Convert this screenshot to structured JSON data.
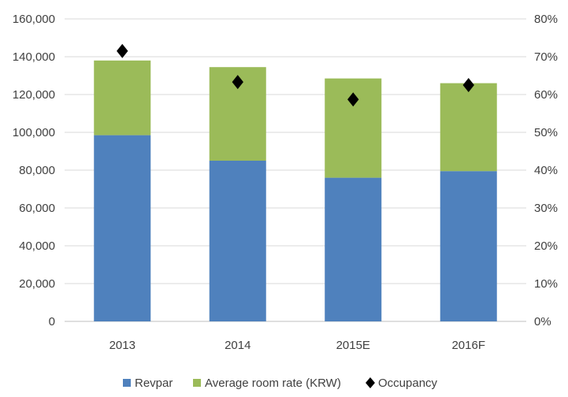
{
  "chart_data": {
    "type": "bar",
    "stacked": true,
    "categories": [
      "2013",
      "2014",
      "2015E",
      "2016F"
    ],
    "series": [
      {
        "name": "Revpar",
        "values": [
          98500,
          85000,
          76000,
          79500
        ],
        "axis": "left",
        "color": "#4f81bd"
      },
      {
        "name": "Average room rate (KRW)",
        "values": [
          39500,
          49500,
          52500,
          46500
        ],
        "axis": "left",
        "color": "#9bbb59"
      },
      {
        "name": "Occupancy",
        "type": "scatter",
        "marker": "diamond",
        "values": [
          0.715,
          0.633,
          0.587,
          0.625
        ],
        "axis": "right",
        "color": "#000000"
      }
    ],
    "left_axis": {
      "ylim": [
        0,
        160000
      ],
      "ticks": [
        "0",
        "20,000",
        "40,000",
        "60,000",
        "80,000",
        "100,000",
        "120,000",
        "140,000",
        "160,000"
      ]
    },
    "right_axis": {
      "ylim": [
        0,
        0.8
      ],
      "ticks": [
        "0%",
        "10%",
        "20%",
        "30%",
        "40%",
        "50%",
        "60%",
        "70%",
        "80%"
      ]
    },
    "grid": true,
    "legend_position": "bottom",
    "title": "",
    "xlabel": "",
    "ylabel": ""
  }
}
